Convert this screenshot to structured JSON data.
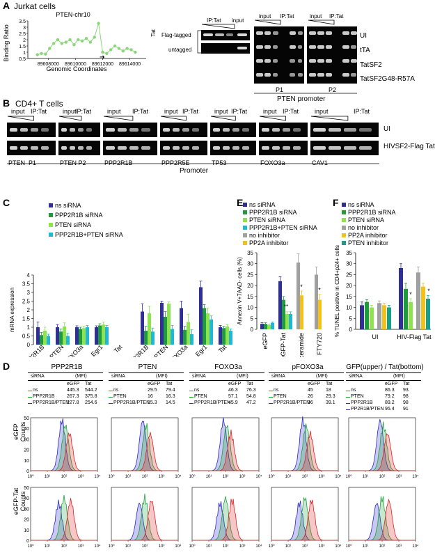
{
  "panelA": {
    "letter": "A",
    "title": "Jurkat cells",
    "chart_title": "PTEN-chr10",
    "ylabel": "Binding Ratio",
    "xlabel": "Genomic Coordinates",
    "xticks": [
      "89608000",
      "89610000",
      "89612000",
      "89614000"
    ],
    "yticks": [
      "0.5",
      "1",
      "1.5",
      "2",
      "2.5",
      "3",
      "3.5"
    ],
    "gel_header": [
      "IP:Tat",
      "input"
    ],
    "tat_label": "Tat",
    "row_labels": [
      "Flag-tagged",
      "untagged"
    ],
    "p_headers": [
      "input",
      "IP:Tat"
    ],
    "right_labels": [
      "UI",
      "tTA",
      "TatSF2",
      "TatSF2G48-R57A"
    ],
    "p_names": [
      "P1",
      "P2"
    ],
    "footer": "PTEN promoter"
  },
  "panelB": {
    "letter": "B",
    "title": "CD4+ T cells",
    "header_input": "input",
    "header_ip": "IP:Tat",
    "row_labels": [
      "UI",
      "HIVSF2-Flag Tat"
    ],
    "genes": [
      "PTEN  P1",
      "PTEN P2",
      "PPP2R1B",
      "PPP2R5E",
      "TP53",
      "FOXO3a",
      "CAV1"
    ],
    "footer": "Promoter"
  },
  "panelC": {
    "letter": "C",
    "legend": [
      "ns siRNA",
      "PPP2R1B siRNA",
      "PTEN siRNA",
      "PPP2R1B+PTEN siRNA"
    ],
    "ylabel": "mRNA expression",
    "group_labels": [
      "eGFP",
      "eGFP-Tat"
    ],
    "yticks": [
      "0",
      "0.5",
      "1",
      "1.5",
      "2",
      "2.5",
      "3",
      "3.5",
      "4"
    ]
  },
  "panelE": {
    "letter": "E",
    "legend": [
      "ns siRNA",
      "PPP2R1B siRNA",
      "PTEN siRNA",
      "PPP2R1B+PTEN siRNA",
      "no inhibitor",
      "PP2A inhibitor"
    ],
    "ylabel": "Annexin V+7AAD- cells (%)",
    "yticks": [
      "0",
      "5",
      "10",
      "15",
      "20",
      "25",
      "30",
      "35"
    ],
    "sig": [
      "**",
      "*",
      "*"
    ]
  },
  "panelF": {
    "letter": "F",
    "legend": [
      "ns siRNA",
      "PPP2R1B siRNA",
      "PTEN siRNA",
      "no inhibitor",
      "PP2A inhibitor",
      "PTEN inhibitor"
    ],
    "ylabel": "% TUNEL positive in CD4+p24+ cells",
    "yticks": [
      "0",
      "5",
      "10",
      "15",
      "20",
      "25",
      "30",
      "35"
    ],
    "sig": [
      "*",
      "*"
    ]
  },
  "panelD": {
    "letter": "D",
    "siRNA": "siRNA",
    "mfi": "(MFI)",
    "col_eGFP": "eGFP",
    "col_Tat": "Tat",
    "ylabel_counts": "Counts",
    "row_labels": [
      "eGFP",
      "eGFP-Tat"
    ],
    "yticks": [
      "0",
      "5",
      "10",
      "15",
      "20",
      "25",
      "30",
      "35",
      "40",
      "45",
      "50"
    ],
    "xticks": [
      "10⁰",
      "10¹",
      "10²",
      "10³",
      "10⁴"
    ],
    "tables": [
      {
        "title": "PPP2R1B",
        "rows": [
          [
            "ns",
            "445.3",
            "544.2"
          ],
          [
            "PPP2R1B",
            "267.3",
            "375.8"
          ],
          [
            "PPP2R1B/PTEN",
            "227.8",
            "254.6"
          ]
        ]
      },
      {
        "title": "PTEN",
        "rows": [
          [
            "ns",
            "29.5",
            "79.4"
          ],
          [
            "PTEN",
            "16",
            "16.3"
          ],
          [
            "PPP2R1B/PTEN",
            "15.3",
            "14.5"
          ]
        ]
      },
      {
        "title": "FOXO3a",
        "rows": [
          [
            "ns",
            "46.3",
            "76.3"
          ],
          [
            "PTEN",
            "57.1",
            "54.8"
          ],
          [
            "PPP2R1B/PTEN",
            "45.9",
            "47.2"
          ]
        ]
      },
      {
        "title": "pFOXO3a",
        "rows": [
          [
            "ns",
            "45",
            "18"
          ],
          [
            "PTEN",
            "26",
            "29.3"
          ],
          [
            "PPP2R1B/PTEN",
            "36",
            "39.1"
          ]
        ]
      },
      {
        "title": "GFP(upper) / Tat(bottom)",
        "rows": [
          [
            "ns",
            "86.3",
            "93."
          ],
          [
            "PTEN",
            "79.2",
            "98"
          ],
          [
            "PPP2R1B",
            "89.2",
            "98"
          ],
          [
            "PP2R1B/PTEN",
            "95.4",
            "91"
          ]
        ]
      }
    ]
  },
  "colors": {
    "ns": "#2f2f96",
    "ppp2r1b": "#1e9b3a",
    "pten": "#8fe34f",
    "combo": "#23b7d6",
    "noinh": "#a0a0a0",
    "pp2a": "#f2c21b",
    "pteninh": "#1a9e8a",
    "chartA": "#8bd67a"
  },
  "chart_data": [
    {
      "type": "line",
      "title": "PTEN-chr10",
      "xlabel": "Genomic Coordinates",
      "ylabel": "Binding Ratio",
      "x": [
        89607200,
        89607500,
        89607800,
        89608100,
        89608400,
        89608700,
        89609000,
        89609300,
        89609600,
        89609900,
        89610200,
        89610500,
        89610800,
        89611100,
        89611400,
        89611700,
        89612000,
        89612300,
        89612600,
        89612900,
        89613200,
        89613500,
        89613800,
        89614100,
        89614400
      ],
      "y": [
        0.8,
        0.9,
        0.85,
        1.3,
        1.7,
        2.0,
        1.7,
        1.8,
        2.0,
        1.6,
        2.0,
        1.9,
        2.1,
        1.8,
        2.2,
        3.3,
        1.0,
        0.9,
        1.2,
        1.5,
        1.3,
        1.1,
        1.3,
        1.2,
        1.0
      ],
      "ylim": [
        0.5,
        3.5
      ],
      "xlim": [
        89606500,
        89615200
      ]
    },
    {
      "type": "bar",
      "categories": [
        "PPP2R1B",
        "PTEN",
        "FOXO3a",
        "Egr1",
        "Tat",
        "PPP2R1B",
        "PTEN",
        "FOXO3a",
        "Egr1",
        "Tat"
      ],
      "groups": [
        "eGFP",
        "eGFP",
        "eGFP",
        "eGFP",
        "eGFP",
        "eGFP-Tat",
        "eGFP-Tat",
        "eGFP-Tat",
        "eGFP-Tat",
        "eGFP-Tat"
      ],
      "ylabel": "mRNA expression",
      "ylim": [
        0,
        4
      ],
      "series": [
        {
          "name": "ns siRNA",
          "values": [
            1.0,
            1.0,
            1.0,
            1.0,
            0,
            1.9,
            2.4,
            2.1,
            3.3,
            1.0
          ]
        },
        {
          "name": "PPP2R1B siRNA",
          "values": [
            0.55,
            0.75,
            0.9,
            1.1,
            0,
            0.8,
            1.6,
            0.85,
            2.1,
            0.95
          ]
        },
        {
          "name": "PTEN siRNA",
          "values": [
            0.8,
            1.05,
            0.95,
            1.15,
            0,
            1.8,
            2.35,
            1.3,
            1.8,
            1.05
          ]
        },
        {
          "name": "PPP2R1B+PTEN siRNA",
          "values": [
            0.5,
            0.5,
            1.0,
            1.0,
            0,
            0.75,
            0.9,
            0.6,
            1.45,
            0.8
          ]
        }
      ],
      "errors": [
        [
          0.3,
          0.15,
          0.08,
          0.08,
          0,
          0.45,
          0.1,
          0.4,
          0.35,
          0.1
        ],
        [
          0.15,
          0.15,
          0.1,
          0.1,
          0,
          0.25,
          0.3,
          0.2,
          0.2,
          0.1
        ],
        [
          0.2,
          0.2,
          0.1,
          0.15,
          0,
          0.4,
          0.1,
          0.45,
          0.3,
          0.1
        ],
        [
          0.1,
          0.15,
          0.1,
          0.1,
          0,
          0.2,
          0.2,
          0.25,
          0.2,
          0.1
        ]
      ]
    },
    {
      "type": "bar",
      "categories": [
        "eGFP",
        "eGFP-Tat",
        "ceramide",
        "FTY720"
      ],
      "ylabel": "Annexin V+7AAD- cells (%)",
      "ylim": [
        0,
        35
      ],
      "series": [
        {
          "name": "ns siRNA",
          "values": [
            2.5,
            22,
            null,
            null
          ]
        },
        {
          "name": "PPP2R1B siRNA",
          "values": [
            2.5,
            13.5,
            null,
            null
          ]
        },
        {
          "name": "PTEN siRNA",
          "values": [
            2.0,
            7.0,
            null,
            null
          ]
        },
        {
          "name": "PPP2R1B+PTEN siRNA",
          "values": [
            3.0,
            7.0,
            null,
            null
          ]
        },
        {
          "name": "no inhibitor",
          "values": [
            null,
            null,
            30.5,
            25
          ]
        },
        {
          "name": "PP2A inhibitor",
          "values": [
            null,
            null,
            15.5,
            13.5
          ]
        }
      ],
      "errors": [
        [
          0.5,
          2,
          null,
          null
        ],
        [
          0.5,
          1.5,
          null,
          null
        ],
        [
          0.4,
          1,
          null,
          null
        ],
        [
          0.4,
          1,
          null,
          null
        ],
        [
          null,
          null,
          4,
          3.5
        ],
        [
          null,
          null,
          2,
          2.5
        ]
      ]
    },
    {
      "type": "bar",
      "categories": [
        "UI",
        "HIV-Flag Tat"
      ],
      "ylabel": "% TUNEL positive in CD4+p24+ cells",
      "ylim": [
        0,
        35
      ],
      "series": [
        {
          "name": "ns siRNA",
          "values": [
            11,
            28
          ]
        },
        {
          "name": "PPP2R1B siRNA",
          "values": [
            12.5,
            18.5
          ]
        },
        {
          "name": "PTEN siRNA",
          "values": [
            10,
            12.5
          ]
        },
        {
          "name": "no inhibitor",
          "values": [
            12,
            26
          ]
        },
        {
          "name": "PP2A inhibitor",
          "values": [
            11,
            19.5
          ]
        },
        {
          "name": "PTEN inhibitor",
          "values": [
            10,
            14
          ]
        }
      ],
      "errors": [
        [
          1.5,
          2
        ],
        [
          1,
          2.5
        ],
        [
          1,
          1.5
        ],
        [
          1,
          2.5
        ],
        [
          1,
          1.5
        ],
        [
          1,
          1.5
        ]
      ]
    }
  ]
}
